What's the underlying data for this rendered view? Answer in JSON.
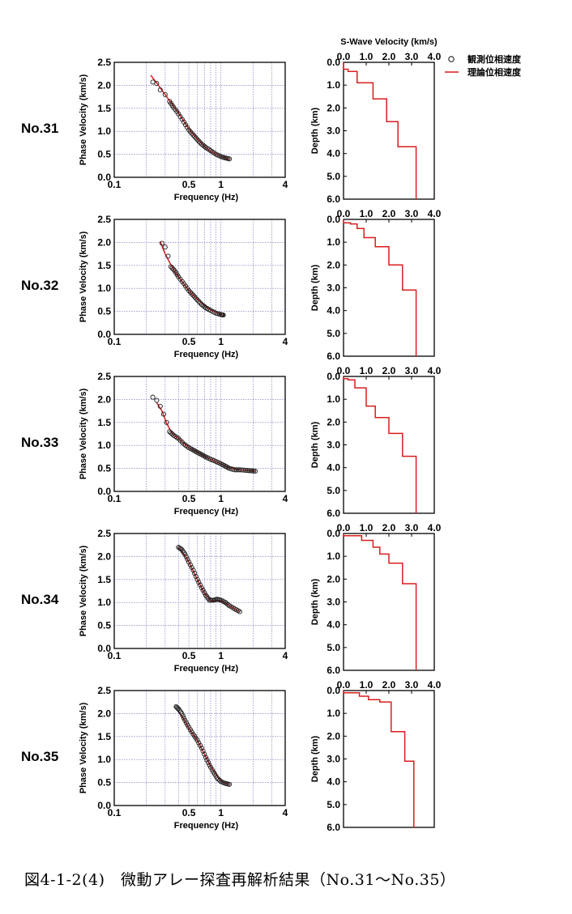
{
  "caption": "図4-1-2(4)　微動アレー探査再解析結果（No.31～No.35）",
  "legend": {
    "observed": "観測位相速度",
    "theoretical": "理論位相速度",
    "observed_marker": "circle-open",
    "theoretical_line": "red-line"
  },
  "colors": {
    "observed": "#222222",
    "theoretical": "#d81e1e",
    "grid": "#6a6ab8"
  },
  "chart_data": [
    {
      "id": "No.31",
      "dispersion": {
        "type": "scatter",
        "xlabel": "Frequency (Hz)",
        "ylabel": "Phase Velocity (km/s)",
        "xscale": "log",
        "xlim": [
          0.1,
          4
        ],
        "ylim": [
          0,
          2.5
        ],
        "xticks": [
          "0.1",
          "0.5",
          "1",
          "4"
        ],
        "yticks": [
          "0.0",
          "0.5",
          "1.0",
          "1.5",
          "2.0",
          "2.5"
        ],
        "grid": true,
        "observed": {
          "x": [
            0.23,
            0.25,
            0.27,
            0.3,
            0.33,
            0.36,
            0.4,
            0.45,
            0.5,
            0.55,
            0.6,
            0.66,
            0.72,
            0.8,
            0.9,
            1.0,
            1.1,
            1.2
          ],
          "y": [
            2.07,
            2.04,
            1.9,
            1.8,
            1.65,
            1.52,
            1.38,
            1.2,
            1.03,
            0.92,
            0.82,
            0.72,
            0.65,
            0.58,
            0.5,
            0.45,
            0.42,
            0.4
          ]
        },
        "theoretical": {
          "x": [
            0.22,
            0.25,
            0.3,
            0.35,
            0.4,
            0.5,
            0.6,
            0.7,
            0.8,
            1.0,
            1.2
          ],
          "y": [
            2.22,
            2.05,
            1.8,
            1.58,
            1.4,
            1.05,
            0.83,
            0.67,
            0.57,
            0.45,
            0.39
          ]
        }
      },
      "vs_profile": {
        "type": "line",
        "xlabel": "S-Wave Velocity (km/s)",
        "ylabel": "Depth (km)",
        "xlim": [
          0,
          4
        ],
        "ylim": [
          0,
          6
        ],
        "xticks": [
          "0.0",
          "1.0",
          "2.0",
          "3.0",
          "4.0"
        ],
        "yticks": [
          "0.0",
          "1.0",
          "2.0",
          "3.0",
          "4.0",
          "5.0",
          "6.0"
        ],
        "layers": [
          [
            0.0,
            0.0,
            0.3
          ],
          [
            0.2,
            0.3,
            0.4
          ],
          [
            0.6,
            0.4,
            0.9
          ],
          [
            1.3,
            0.9,
            1.6
          ],
          [
            1.9,
            1.6,
            2.6
          ],
          [
            2.4,
            2.6,
            3.7
          ],
          [
            3.2,
            3.7,
            6.0
          ]
        ]
      }
    },
    {
      "id": "No.32",
      "dispersion": {
        "type": "scatter",
        "xlabel": "Frequency (Hz)",
        "ylabel": "Phase Velocity (km/s)",
        "xscale": "log",
        "xlim": [
          0.1,
          4
        ],
        "ylim": [
          0,
          2.5
        ],
        "xticks": [
          "0.1",
          "0.5",
          "1",
          "4"
        ],
        "yticks": [
          "0.0",
          "0.5",
          "1.0",
          "1.5",
          "2.0",
          "2.5"
        ],
        "grid": true,
        "observed": {
          "x": [
            0.28,
            0.3,
            0.32,
            0.34,
            0.37,
            0.4,
            0.45,
            0.5,
            0.55,
            0.6,
            0.66,
            0.72,
            0.8,
            0.9,
            1.0,
            1.05
          ],
          "y": [
            1.98,
            1.9,
            1.7,
            1.47,
            1.38,
            1.25,
            1.1,
            0.95,
            0.85,
            0.75,
            0.65,
            0.58,
            0.52,
            0.46,
            0.43,
            0.42
          ]
        },
        "theoretical": {
          "x": [
            0.27,
            0.3,
            0.35,
            0.4,
            0.5,
            0.6,
            0.7,
            0.8,
            1.0,
            1.1
          ],
          "y": [
            2.02,
            1.75,
            1.45,
            1.25,
            0.95,
            0.76,
            0.63,
            0.53,
            0.43,
            0.4
          ]
        }
      },
      "vs_profile": {
        "type": "line",
        "xlabel": "S-Wave Velocity (km/s)",
        "ylabel": "Depth (km)",
        "xlim": [
          0,
          4
        ],
        "ylim": [
          0,
          6
        ],
        "xticks": [
          "0.0",
          "1.0",
          "2.0",
          "3.0",
          "4.0"
        ],
        "yticks": [
          "0.0",
          "1.0",
          "2.0",
          "3.0",
          "4.0",
          "5.0",
          "6.0"
        ],
        "layers": [
          [
            0.0,
            0.0,
            0.15
          ],
          [
            0.3,
            0.15,
            0.2
          ],
          [
            0.6,
            0.2,
            0.4
          ],
          [
            0.9,
            0.4,
            0.8
          ],
          [
            1.4,
            0.8,
            1.2
          ],
          [
            2.0,
            1.2,
            2.0
          ],
          [
            2.6,
            2.0,
            3.1
          ],
          [
            3.2,
            3.1,
            6.0
          ]
        ]
      }
    },
    {
      "id": "No.33",
      "dispersion": {
        "type": "scatter",
        "xlabel": "Frequency (Hz)",
        "ylabel": "Phase Velocity (km/s)",
        "xscale": "log",
        "xlim": [
          0.1,
          4
        ],
        "ylim": [
          0,
          2.5
        ],
        "xticks": [
          "0.1",
          "0.5",
          "1",
          "4"
        ],
        "yticks": [
          "0.0",
          "0.5",
          "1.0",
          "1.5",
          "2.0",
          "2.5"
        ],
        "grid": true,
        "observed": {
          "x": [
            0.23,
            0.25,
            0.27,
            0.29,
            0.31,
            0.33,
            0.36,
            0.4,
            0.45,
            0.5,
            0.55,
            0.6,
            0.66,
            0.72,
            0.8,
            0.9,
            1.0,
            1.1,
            1.2,
            1.35,
            1.5,
            1.7,
            1.9,
            2.1
          ],
          "y": [
            2.05,
            1.98,
            1.85,
            1.68,
            1.5,
            1.3,
            1.22,
            1.15,
            1.03,
            0.95,
            0.9,
            0.85,
            0.8,
            0.75,
            0.7,
            0.65,
            0.6,
            0.55,
            0.5,
            0.47,
            0.47,
            0.46,
            0.45,
            0.44
          ]
        },
        "theoretical": {
          "x": [
            0.25,
            0.28,
            0.31,
            0.35,
            0.4,
            0.5,
            0.6,
            0.7,
            0.8,
            1.0,
            1.2,
            1.5,
            2.1
          ],
          "y": [
            1.93,
            1.75,
            1.48,
            1.25,
            1.15,
            0.95,
            0.86,
            0.77,
            0.7,
            0.6,
            0.51,
            0.47,
            0.44
          ]
        }
      },
      "vs_profile": {
        "type": "line",
        "xlabel": "S-Wave Velocity (km/s)",
        "ylabel": "Depth (km)",
        "xlim": [
          0,
          4
        ],
        "ylim": [
          0,
          6
        ],
        "xticks": [
          "0.0",
          "1.0",
          "2.0",
          "3.0",
          "4.0"
        ],
        "yticks": [
          "0.0",
          "1.0",
          "2.0",
          "3.0",
          "4.0",
          "5.0",
          "6.0"
        ],
        "layers": [
          [
            0.0,
            0.0,
            0.1
          ],
          [
            0.2,
            0.1,
            0.15
          ],
          [
            0.5,
            0.15,
            0.5
          ],
          [
            1.0,
            0.5,
            1.3
          ],
          [
            1.4,
            1.3,
            1.8
          ],
          [
            2.0,
            1.8,
            2.5
          ],
          [
            2.6,
            2.5,
            3.5
          ],
          [
            3.2,
            3.5,
            6.0
          ]
        ]
      }
    },
    {
      "id": "No.34",
      "dispersion": {
        "type": "scatter",
        "xlabel": "Frequency (Hz)",
        "ylabel": "Phase Velocity (km/s)",
        "xscale": "log",
        "xlim": [
          0.1,
          4
        ],
        "ylim": [
          0,
          2.5
        ],
        "xticks": [
          "0.1",
          "0.5",
          "1",
          "4"
        ],
        "yticks": [
          "0.0",
          "0.5",
          "1.0",
          "1.5",
          "2.0",
          "2.5"
        ],
        "grid": true,
        "observed": {
          "x": [
            0.4,
            0.43,
            0.46,
            0.5,
            0.55,
            0.6,
            0.66,
            0.72,
            0.78,
            0.85,
            0.92,
            1.0,
            1.1,
            1.2,
            1.35,
            1.5
          ],
          "y": [
            2.2,
            2.15,
            2.05,
            1.88,
            1.7,
            1.5,
            1.32,
            1.16,
            1.05,
            1.05,
            1.07,
            1.05,
            1.0,
            0.93,
            0.86,
            0.8
          ]
        },
        "theoretical": {
          "x": [
            0.4,
            0.45,
            0.5,
            0.6,
            0.7,
            0.8,
            0.9,
            1.0,
            1.2,
            1.5
          ],
          "y": [
            2.2,
            2.05,
            1.88,
            1.5,
            1.2,
            1.04,
            1.05,
            1.04,
            0.93,
            0.8
          ]
        }
      },
      "vs_profile": {
        "type": "line",
        "xlabel": "S-Wave Velocity (km/s)",
        "ylabel": "Depth (km)",
        "xlim": [
          0,
          4
        ],
        "ylim": [
          0,
          6
        ],
        "xticks": [
          "0.0",
          "1.0",
          "2.0",
          "3.0",
          "4.0"
        ],
        "yticks": [
          "0.0",
          "1.0",
          "2.0",
          "3.0",
          "4.0",
          "5.0",
          "6.0"
        ],
        "layers": [
          [
            0.0,
            0.0,
            0.1
          ],
          [
            0.8,
            0.1,
            0.3
          ],
          [
            1.3,
            0.3,
            0.6
          ],
          [
            1.6,
            0.6,
            0.9
          ],
          [
            2.0,
            0.9,
            1.3
          ],
          [
            2.6,
            1.3,
            2.2
          ],
          [
            3.2,
            2.2,
            6.0
          ]
        ]
      }
    },
    {
      "id": "No.35",
      "dispersion": {
        "type": "scatter",
        "xlabel": "Frequency (Hz)",
        "ylabel": "Phase Velocity (km/s)",
        "xscale": "log",
        "xlim": [
          0.1,
          4
        ],
        "ylim": [
          0,
          2.5
        ],
        "xticks": [
          "0.1",
          "0.5",
          "1",
          "4"
        ],
        "yticks": [
          "0.0",
          "0.5",
          "1.0",
          "1.5",
          "2.0",
          "2.5"
        ],
        "grid": true,
        "observed": {
          "x": [
            0.38,
            0.4,
            0.43,
            0.46,
            0.5,
            0.55,
            0.6,
            0.66,
            0.72,
            0.78,
            0.85,
            0.92,
            1.0,
            1.1,
            1.2
          ],
          "y": [
            2.15,
            2.1,
            2.0,
            1.85,
            1.7,
            1.55,
            1.42,
            1.25,
            1.05,
            0.88,
            0.73,
            0.6,
            0.52,
            0.48,
            0.46
          ]
        },
        "theoretical": {
          "x": [
            0.4,
            0.45,
            0.5,
            0.6,
            0.7,
            0.8,
            0.9,
            1.0,
            1.2
          ],
          "y": [
            2.05,
            1.88,
            1.68,
            1.42,
            1.12,
            0.85,
            0.67,
            0.53,
            0.46
          ]
        }
      },
      "vs_profile": {
        "type": "line",
        "xlabel": "S-Wave Velocity (km/s)",
        "ylabel": "Depth (km)",
        "xlim": [
          0,
          4
        ],
        "ylim": [
          0,
          6
        ],
        "xticks": [
          "0.0",
          "1.0",
          "2.0",
          "3.0",
          "4.0"
        ],
        "yticks": [
          "0.0",
          "1.0",
          "2.0",
          "3.0",
          "4.0",
          "5.0",
          "6.0"
        ],
        "layers": [
          [
            0.0,
            0.0,
            0.1
          ],
          [
            0.7,
            0.1,
            0.25
          ],
          [
            1.1,
            0.25,
            0.4
          ],
          [
            1.6,
            0.4,
            0.5
          ],
          [
            2.1,
            0.5,
            1.8
          ],
          [
            2.7,
            1.8,
            3.1
          ],
          [
            3.1,
            3.1,
            6.0
          ]
        ]
      }
    }
  ]
}
